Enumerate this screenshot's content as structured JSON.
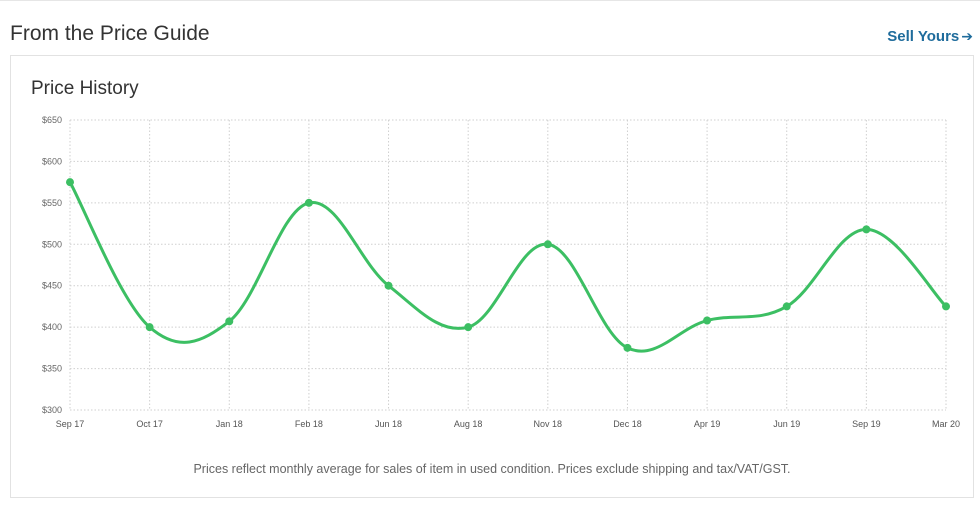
{
  "header": {
    "title": "From the Price Guide",
    "sell_label": "Sell Yours",
    "sell_icon": "arrow-right-icon"
  },
  "card": {
    "title": "Price History",
    "footnote": "Prices reflect monthly average for sales of item in used condition. Prices exclude shipping and tax/VAT/GST."
  },
  "chart_data": {
    "type": "line",
    "title": "Price History",
    "xlabel": "",
    "ylabel": "",
    "categories": [
      "Sep 17",
      "Oct 17",
      "Jan 18",
      "Feb 18",
      "Jun 18",
      "Aug 18",
      "Nov 18",
      "Dec 18",
      "Apr 19",
      "Jun 19",
      "Sep 19",
      "Mar 20"
    ],
    "series": [
      {
        "values": [
          575,
          400,
          407,
          550,
          450,
          400,
          500,
          375,
          408,
          425,
          518,
          425
        ],
        "color": "#3cbf63"
      }
    ],
    "ylim": [
      300,
      650
    ],
    "yticks": [
      300,
      350,
      400,
      450,
      500,
      550,
      600,
      650
    ],
    "ytick_labels": [
      "$300",
      "$350",
      "$400",
      "$450",
      "$500",
      "$550",
      "$600",
      "$650"
    ],
    "grid": true,
    "grid_color": "#cfcfcf",
    "legend": "none"
  }
}
